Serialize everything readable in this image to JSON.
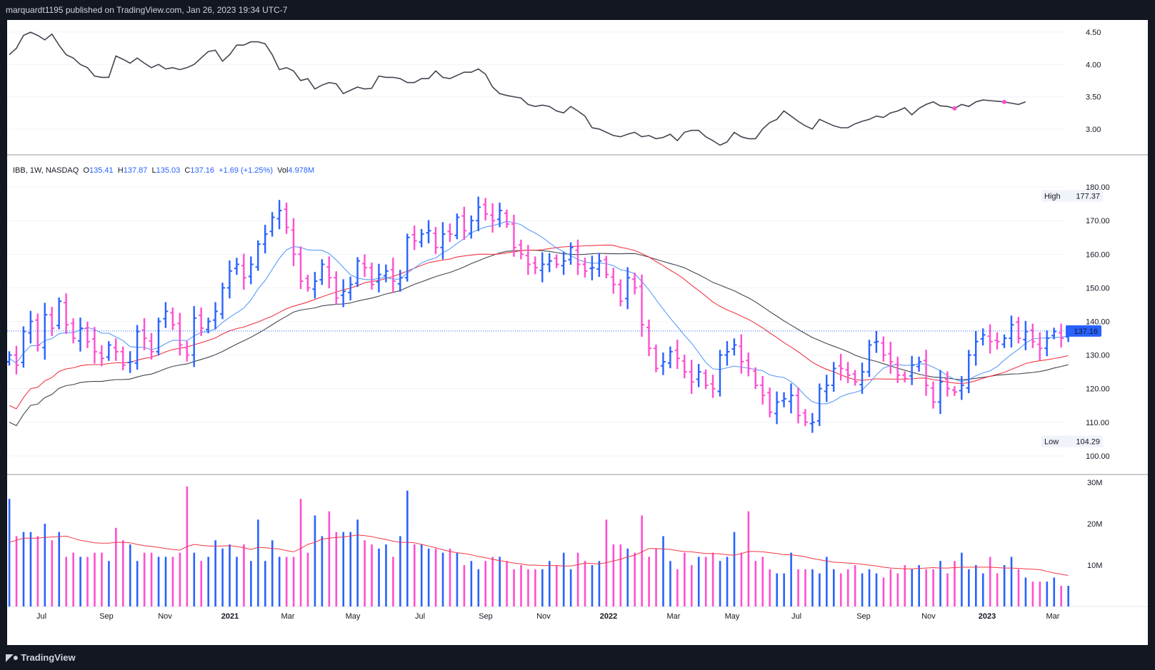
{
  "header": {
    "published_text": "marquardt1195 published on TradingView.com, Jan 26, 2023 19:34 UTC-7"
  },
  "legend": {
    "symbol": "IBB, 1W, NASDAQ",
    "open_label": "O",
    "open": "135.41",
    "high_label": "H",
    "high": "137.87",
    "low_label": "L",
    "low": "135.03",
    "close_label": "C",
    "close": "137.16",
    "change": "+1.69 (+1.25%)",
    "vol_label": "Vol",
    "vol": "4.978M"
  },
  "price_axis": {
    "ticks": [
      "180.00",
      "170.00",
      "160.00",
      "150.00",
      "140.00",
      "130.00",
      "120.00",
      "110.00",
      "100.00"
    ],
    "high_label": "High",
    "high_value": "177.37",
    "low_label": "Low",
    "low_value": "104.29",
    "last_value": "137.16"
  },
  "ratio_axis": {
    "ticks": [
      "4.50",
      "4.00",
      "3.50",
      "3.00"
    ]
  },
  "volume_axis": {
    "ticks": [
      "30M",
      "20M",
      "10M"
    ]
  },
  "time_axis": {
    "labels": [
      "Jul",
      "Sep",
      "Nov",
      "2021",
      "Mar",
      "May",
      "Jul",
      "Sep",
      "Nov",
      "2022",
      "Mar",
      "May",
      "Jul",
      "Sep",
      "Nov",
      "2023",
      "Mar"
    ]
  },
  "footer": {
    "brand": "TradingView",
    "logo_icon": "tradingview-logo-icon"
  },
  "colors": {
    "up": "#2962ff",
    "down": "#ff4fcf",
    "sma10": "#5b9cf6",
    "sma30": "#f23645",
    "sma40": "#434651",
    "ratio": "#434651",
    "last_price_bg": "#2962ff"
  },
  "chart_data": [
    {
      "type": "line",
      "title": "",
      "ylim": [
        2.7,
        4.6
      ],
      "x_start": "2020-06-01",
      "interval": "1W",
      "values": [
        4.15,
        4.25,
        4.45,
        4.5,
        4.45,
        4.38,
        4.47,
        4.3,
        4.15,
        4.1,
        4.0,
        3.95,
        3.82,
        3.8,
        3.8,
        4.13,
        4.08,
        4.02,
        4.1,
        4.02,
        3.95,
        4.0,
        3.93,
        3.95,
        3.92,
        3.95,
        4.0,
        4.1,
        4.2,
        4.22,
        4.05,
        4.15,
        4.3,
        4.3,
        4.35,
        4.35,
        4.32,
        4.15,
        3.92,
        3.95,
        3.9,
        3.75,
        3.78,
        3.62,
        3.68,
        3.72,
        3.7,
        3.55,
        3.6,
        3.65,
        3.62,
        3.63,
        3.82,
        3.8,
        3.8,
        3.78,
        3.72,
        3.72,
        3.78,
        3.78,
        3.9,
        3.8,
        3.78,
        3.83,
        3.88,
        3.88,
        3.93,
        3.85,
        3.65,
        3.55,
        3.52,
        3.5,
        3.48,
        3.38,
        3.35,
        3.37,
        3.35,
        3.28,
        3.25,
        3.35,
        3.28,
        3.2,
        3.02,
        3.0,
        2.95,
        2.9,
        2.88,
        2.92,
        2.95,
        2.88,
        2.9,
        2.85,
        2.87,
        2.92,
        2.82,
        2.95,
        2.98,
        2.98,
        2.88,
        2.82,
        2.75,
        2.8,
        2.95,
        2.88,
        2.85,
        2.85,
        3.0,
        3.1,
        3.15,
        3.28,
        3.2,
        3.12,
        3.05,
        3.0,
        3.15,
        3.1,
        3.05,
        3.02,
        3.02,
        3.08,
        3.12,
        3.15,
        3.2,
        3.18,
        3.25,
        3.28,
        3.33,
        3.22,
        3.32,
        3.38,
        3.42,
        3.36,
        3.35,
        3.32,
        3.38,
        3.35,
        3.42,
        3.45,
        3.44,
        3.43,
        3.42,
        3.4,
        3.38,
        3.42
      ],
      "markers": [
        133,
        140
      ]
    },
    {
      "type": "bar",
      "subtype": "ohlc",
      "ylim": [
        97,
        183
      ],
      "x_start": "2020-06-01",
      "interval": "1W",
      "seed_closes": [
        130,
        127,
        137,
        140,
        133,
        142,
        138,
        146,
        139,
        135,
        138,
        134,
        131,
        129,
        133,
        131,
        127,
        128,
        137,
        135,
        131,
        140,
        143,
        139,
        133,
        130,
        141,
        138,
        140,
        143,
        150,
        155,
        157,
        153,
        157,
        163,
        166,
        171,
        173,
        168,
        160,
        152,
        150,
        152,
        157,
        153,
        147,
        149,
        151,
        158,
        156,
        151,
        154,
        155,
        152,
        153,
        165,
        164,
        166,
        167,
        162,
        166,
        166,
        171,
        167,
        170,
        174,
        172,
        170,
        173,
        169,
        162,
        160,
        157,
        156,
        157,
        158,
        157,
        158,
        162,
        157,
        155,
        156,
        158,
        154,
        151,
        146,
        153,
        150,
        139,
        132,
        126,
        128,
        131,
        129,
        125,
        122,
        125,
        121,
        120,
        130,
        131,
        133,
        128,
        126,
        121,
        118,
        113,
        116,
        117,
        118,
        112,
        110,
        110,
        120,
        121,
        126,
        126,
        124,
        122,
        125,
        133,
        134,
        130,
        128,
        124,
        123,
        127,
        128,
        121,
        116,
        122,
        120,
        119,
        121,
        130,
        134,
        136,
        134,
        134,
        135,
        139,
        135,
        137,
        134,
        132,
        135,
        137,
        135,
        137.16
      ]
    },
    {
      "type": "bar",
      "subtype": "volume",
      "ylim": [
        0,
        30
      ],
      "unit": "M",
      "values": [
        26,
        17,
        18,
        18,
        17,
        20,
        16,
        18,
        12,
        13,
        12,
        12,
        13,
        13,
        11,
        19,
        16,
        15,
        11,
        13,
        13,
        12,
        12,
        12,
        13,
        29,
        13,
        11,
        12,
        16,
        14,
        15,
        12,
        15,
        11,
        21,
        11,
        16,
        12,
        12,
        12,
        26,
        13,
        22,
        17,
        23,
        18,
        18,
        18,
        21,
        16,
        15,
        14,
        15,
        12,
        17,
        28,
        15,
        15,
        14,
        14,
        13,
        14,
        13,
        10,
        11,
        9,
        11,
        12,
        12,
        11,
        9,
        10,
        9,
        9,
        9,
        11,
        10,
        13,
        9,
        13,
        11,
        10,
        11,
        21,
        15,
        15,
        14,
        13,
        22,
        12,
        14,
        17,
        11,
        9,
        13,
        10,
        12,
        12,
        13,
        11,
        12,
        18,
        13,
        23,
        11,
        12,
        9,
        8,
        8,
        13,
        9,
        9,
        9,
        8,
        12,
        9,
        8,
        9,
        10,
        8,
        9,
        8,
        7,
        9,
        8,
        10,
        9,
        10,
        9,
        9,
        11,
        8,
        11,
        13,
        9,
        10,
        8,
        12,
        8,
        10,
        12,
        9,
        7,
        6,
        6,
        6,
        7,
        5,
        5
      ],
      "ma": [
        15.5,
        16,
        16.5,
        16.5,
        16.5,
        16.7,
        16.8,
        16.9,
        17,
        16.5,
        16,
        15.7,
        15.4,
        15.3,
        15.3,
        15.5,
        15.5,
        15.4,
        15,
        14.7,
        14.5,
        14.3,
        14,
        13.8,
        13.6,
        14.5,
        15,
        14.8,
        14.6,
        14.6,
        14.6,
        14.7,
        14.5,
        14.2,
        13.8,
        14.3,
        14.2,
        14,
        13.9,
        13.5,
        13.2,
        14,
        15,
        15.5,
        16.3,
        16.5,
        16.7,
        16.8,
        17,
        17.3,
        17.1,
        16.9,
        16.5,
        16.2,
        15.8,
        15.5,
        15.5,
        15.4,
        15,
        14.6,
        14.2,
        13.7,
        13.3,
        13,
        12.8,
        12.5,
        12.1,
        11.8,
        11.4,
        11.1,
        10.8,
        10.5,
        10.3,
        10,
        10,
        9.9,
        9.9,
        9.9,
        9.8,
        9.8,
        10.1,
        10.5,
        10.4,
        10.3,
        10.6,
        11,
        11.4,
        12,
        12.4,
        13.2,
        14,
        14,
        13.9,
        13.8,
        13.5,
        13.3,
        13.2,
        13,
        12.8,
        12.8,
        12.7,
        12.5,
        12.4,
        12.8,
        13.3,
        13.3,
        13.2,
        13,
        12.8,
        12.5,
        12.5,
        12.3,
        12,
        11.6,
        11.3,
        11,
        10.7,
        10.6,
        10.5,
        10.4,
        10.2,
        10,
        9.8,
        9.5,
        9.3,
        9.2,
        9.1,
        9.1,
        9.2,
        9.3,
        9.4,
        9.3,
        9.3,
        9.4,
        9.5,
        9.5,
        9.5,
        9.5,
        9.5,
        9.4,
        9.3,
        9.3,
        9.2,
        9.1,
        9,
        8.9,
        8.5,
        8.1,
        7.8,
        7.5
      ]
    }
  ]
}
